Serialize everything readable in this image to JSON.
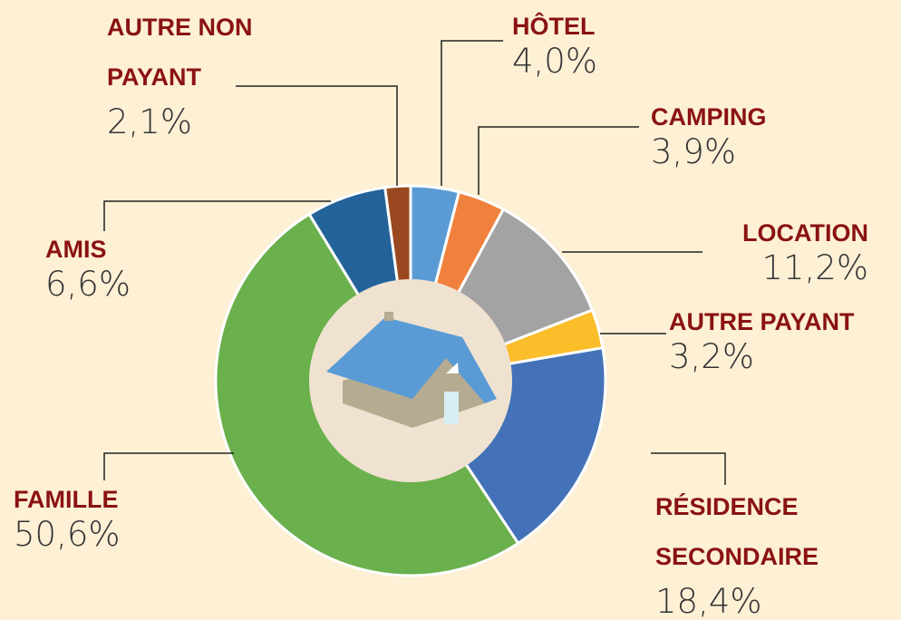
{
  "chart_data": {
    "type": "pie",
    "categories": [
      "HÔTEL",
      "CAMPING",
      "LOCATION",
      "AUTRE PAYANT",
      "RÉSIDENCE SECONDAIRE",
      "FAMILLE",
      "AMIS",
      "AUTRE NON PAYANT"
    ],
    "values": [
      4.0,
      3.9,
      11.2,
      3.2,
      18.4,
      50.6,
      6.6,
      2.1
    ],
    "value_labels": [
      "4,0%",
      "3,9%",
      "11,2%",
      "3,2%",
      "18,4%",
      "50,6%",
      "6,6%",
      "2,1%"
    ],
    "colors": [
      "#5b9bd5",
      "#f0813d",
      "#a3a3a3",
      "#fbbd2a",
      "#4472b8",
      "#6ab04c",
      "#23639a",
      "#9a4820"
    ]
  }
}
